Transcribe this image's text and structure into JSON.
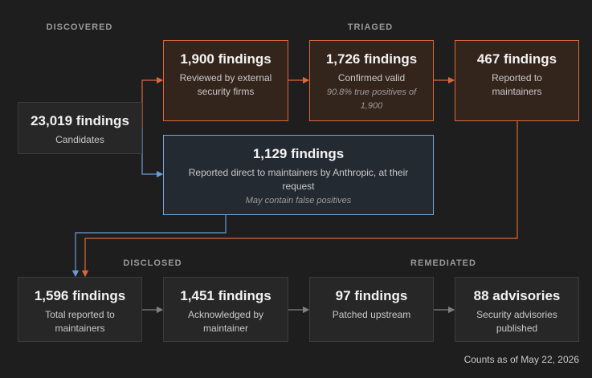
{
  "sections": [
    "DISCOVERED",
    "TRIAGED",
    "DISCLOSED",
    "REMEDIATED"
  ],
  "nodes": [
    {
      "title": "23,019 findings",
      "subtitle": "Candidates"
    },
    {
      "title": "1,900 findings",
      "subtitle": "Reviewed by external security firms"
    },
    {
      "title": "1,726 findings",
      "subtitle": "Confirmed valid",
      "note": "90.8% true positives of 1,900"
    },
    {
      "title": "467 findings",
      "subtitle": "Reported to maintainers"
    },
    {
      "title": "1,129 findings",
      "subtitle": "Reported direct to maintainers by Anthropic, at their request",
      "note": "May contain false positives"
    },
    {
      "title": "1,596 findings",
      "subtitle": "Total reported to maintainers"
    },
    {
      "title": "1,451 findings",
      "subtitle": "Acknowledged by maintainer"
    },
    {
      "title": "97 findings",
      "subtitle": "Patched upstream"
    },
    {
      "title": "88 advisories",
      "subtitle": "Security advisories published"
    }
  ],
  "footer": "Counts as of May 22, 2026"
}
